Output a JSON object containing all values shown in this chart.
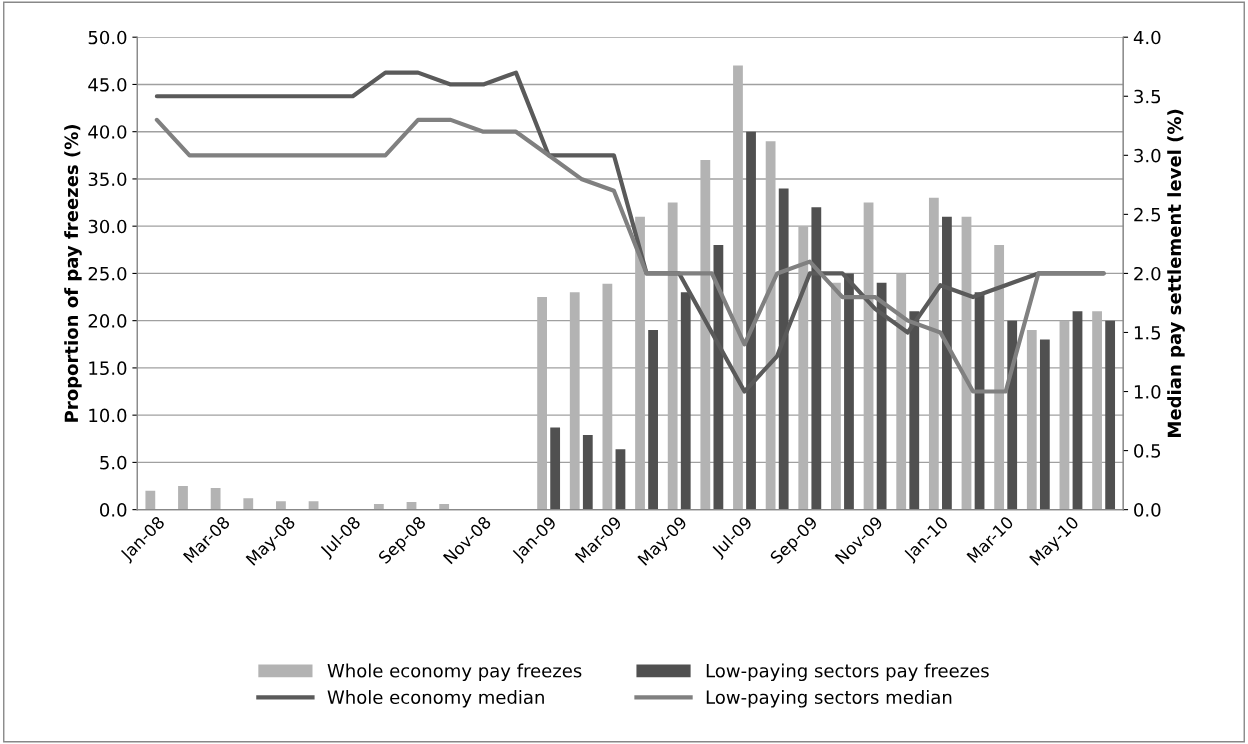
{
  "chart_data": {
    "type": "bar",
    "ylabel": "Proportion of pay freezes (%)",
    "y2label": "Median pay settlement level (%)",
    "categories": [
      "Jan-08",
      null,
      "Mar-08",
      null,
      "May-08",
      null,
      "Jul-08",
      null,
      "Sep-08",
      null,
      "Nov-08",
      null,
      "Jan-09",
      null,
      "Mar-09",
      null,
      "May-09",
      null,
      "Jul-09",
      null,
      "Sep-09",
      null,
      "Nov-09",
      null,
      "Jan-10",
      null,
      "Mar-10",
      null,
      "May-10",
      null
    ],
    "series": [
      {
        "name": "Whole economy pay freezes",
        "color": "#b3b3b3",
        "values": [
          2.0,
          2.5,
          2.3,
          1.2,
          0.9,
          0.9,
          null,
          0.6,
          0.8,
          0.6,
          null,
          null,
          22.5,
          23,
          23.9,
          31,
          32.5,
          37,
          47,
          39,
          30,
          24,
          32.5,
          25,
          33,
          31,
          28,
          19,
          20,
          21
        ]
      },
      {
        "name": "Low-paying sectors pay freezes",
        "color": "#505050",
        "values": [
          null,
          null,
          null,
          null,
          null,
          null,
          null,
          null,
          null,
          null,
          null,
          null,
          8.7,
          7.9,
          6.4,
          19,
          23,
          28,
          40,
          34,
          32,
          25,
          24,
          21,
          31,
          23,
          20,
          18,
          21,
          20
        ]
      },
      {
        "name": "Whole economy median",
        "type": "line",
        "axis": "y2",
        "color": "#5a5a5a",
        "values": [
          3.5,
          3.5,
          3.5,
          3.5,
          3.5,
          3.5,
          3.5,
          3.7,
          3.7,
          3.6,
          3.6,
          3.7,
          3.0,
          3.0,
          3.0,
          2.0,
          2.0,
          1.5,
          1.0,
          1.3,
          2.0,
          2.0,
          1.7,
          1.5,
          1.9,
          1.8,
          1.9,
          2.0,
          2.0,
          2.0
        ]
      },
      {
        "name": "Low-paying sectors median",
        "type": "line",
        "axis": "y2",
        "color": "#808080",
        "values": [
          3.3,
          3.0,
          3.0,
          3.0,
          3.0,
          3.0,
          3.0,
          3.0,
          3.3,
          3.3,
          3.2,
          3.2,
          3.0,
          2.8,
          2.7,
          2.0,
          2.0,
          2.0,
          1.4,
          2.0,
          2.1,
          1.8,
          1.8,
          1.6,
          1.5,
          1.0,
          1.0,
          2.0,
          2.0,
          2.0
        ]
      }
    ],
    "ylim": [
      0,
      50
    ],
    "yticks": [
      {
        "value": 0,
        "label": "0.0"
      },
      {
        "value": 5,
        "label": "5.0"
      },
      {
        "value": 10,
        "label": "10.0"
      },
      {
        "value": 15,
        "label": "15.0"
      },
      {
        "value": 20,
        "label": "20.0"
      },
      {
        "value": 25,
        "label": "25.0"
      },
      {
        "value": 30,
        "label": "30.0"
      },
      {
        "value": 35,
        "label": "35.0"
      },
      {
        "value": 40,
        "label": "40.0"
      },
      {
        "value": 45,
        "label": "45.0"
      },
      {
        "value": 50,
        "label": "50.0"
      }
    ],
    "y2lim": [
      0,
      4
    ],
    "y2ticks": [
      {
        "value": 0,
        "label": "0.0"
      },
      {
        "value": 0.5,
        "label": "0.5"
      },
      {
        "value": 1,
        "label": "1.0"
      },
      {
        "value": 1.5,
        "label": "1.5"
      },
      {
        "value": 2,
        "label": "2.0"
      },
      {
        "value": 2.5,
        "label": "2.5"
      },
      {
        "value": 3,
        "label": "3.0"
      },
      {
        "value": 3.5,
        "label": "3.5"
      },
      {
        "value": 4,
        "label": "4.0"
      }
    ],
    "grid": "y",
    "legend": "bottom",
    "marker": "none",
    "line_style": "solid"
  }
}
